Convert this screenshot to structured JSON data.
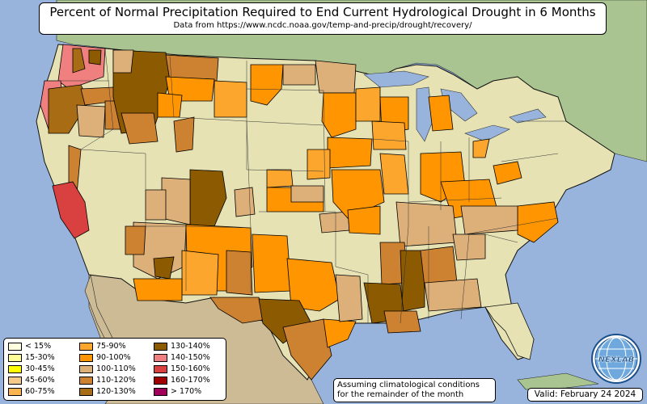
{
  "title": "Percent of Normal Precipitation Required to End Current Hydrological Drought in 6 Months",
  "subtitle": "Data from https://www.ncdc.noaa.gov/temp-and-precip/drought/recovery/",
  "legend": [
    {
      "label": "< 15%",
      "color": "#ffffe0"
    },
    {
      "label": "15-30%",
      "color": "#ffff99"
    },
    {
      "label": "30-45%",
      "color": "#ffff00"
    },
    {
      "label": "45-60%",
      "color": "#f5c98a"
    },
    {
      "label": "60-75%",
      "color": "#fbb450"
    },
    {
      "label": "75-90%",
      "color": "#fca62e"
    },
    {
      "label": "90-100%",
      "color": "#ff9500"
    },
    {
      "label": "100-110%",
      "color": "#ddb07a"
    },
    {
      "label": "110-120%",
      "color": "#cd8232"
    },
    {
      "label": "120-130%",
      "color": "#a86c14"
    },
    {
      "label": "130-140%",
      "color": "#8c5a00"
    },
    {
      "label": "140-150%",
      "color": "#f08080"
    },
    {
      "label": "150-160%",
      "color": "#d94040"
    },
    {
      "label": "160-170%",
      "color": "#a00000"
    },
    {
      "label": "> 170%",
      "color": "#a0005a"
    }
  ],
  "note": "Assuming climatological conditions for the remainder of the month",
  "valid": "Valid: February 24 2024",
  "logo": {
    "text": "NEXLAB",
    "icon": "globe-icon"
  }
}
